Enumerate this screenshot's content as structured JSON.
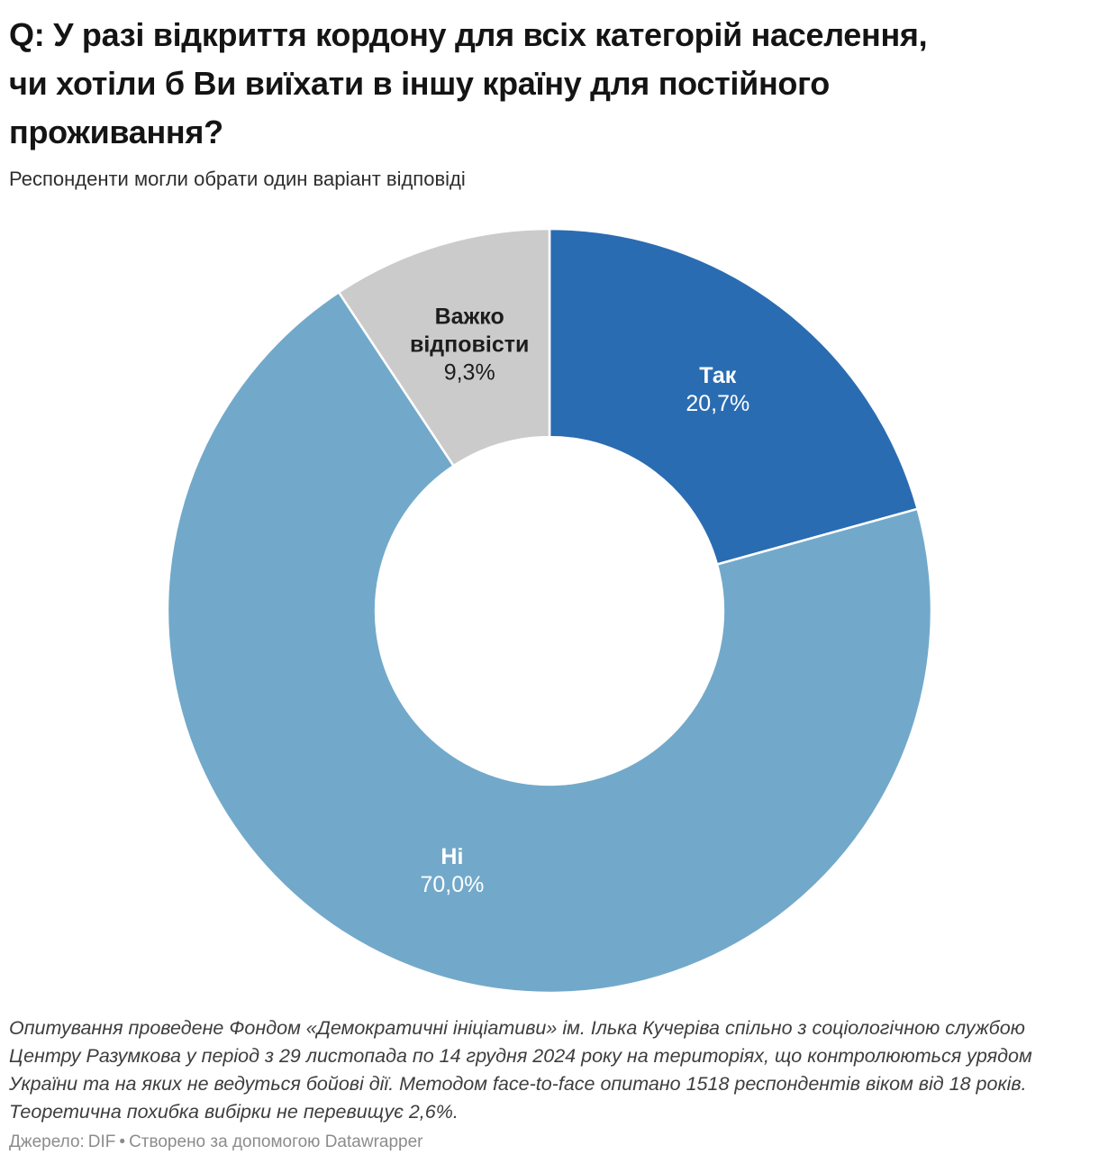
{
  "chart_data": {
    "type": "pie",
    "variant": "donut",
    "title": "Q: У разі відкриття кордону для всіх категорій населення, чи хотіли б Ви виїхати в іншу країну для постійного проживання?",
    "subtitle": "Респонденти могли обрати один варіант відповіді",
    "categories": [
      "Так",
      "Ні",
      "Важко відповісти"
    ],
    "values": [
      20.7,
      70.0,
      9.3
    ],
    "value_labels": [
      "20,7%",
      "70,0%",
      "9,3%"
    ],
    "colors": [
      "#2a6cb2",
      "#72a9ca",
      "#cbcbcb"
    ],
    "label_text_colors": [
      "#ffffff",
      "#ffffff",
      "#1d1d1d"
    ],
    "start_angle_deg": 0,
    "direction": "clockwise",
    "donut_hole_ratio": 0.455,
    "legend_position": "none",
    "labels_inside": true
  },
  "footer": {
    "notes": "Опитування проведене Фондом «Демократичні ініціативи» ім. Ілька Кучеріва спільно з соціологічною службою Центру Разумкова у період з 29 листопада по 14 грудня 2024 року на територіях, що контролюються урядом України та на яких не ведуться бойові дії. Методом face-to-face опитано 1518 респондентів віком від 18 років. Теоретична похибка вибірки не перевищує 2,6%.",
    "source_label": "Джерело:",
    "source_name": "DIF",
    "separator": "•",
    "attribution": "Створено за допомогою Datawrapper"
  }
}
